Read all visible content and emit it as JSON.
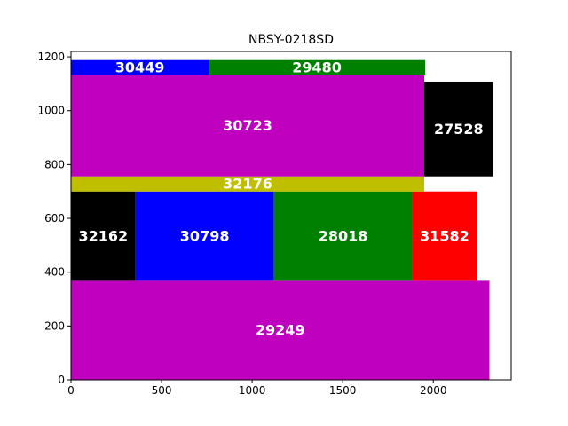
{
  "chart_data": {
    "type": "bar",
    "subtype": "rectangle-packing",
    "title": "NBSY-0218SD",
    "xlabel": "",
    "ylabel": "",
    "xlim": [
      0,
      2430
    ],
    "ylim": [
      0,
      1220
    ],
    "xticks": [
      0,
      500,
      1000,
      1500,
      2000
    ],
    "yticks": [
      0,
      200,
      400,
      600,
      800,
      1000,
      1200
    ],
    "grid": false,
    "rectangles": [
      {
        "label": "29249",
        "x": 0,
        "y": 0,
        "width": 2310,
        "height": 368,
        "color": "#bf00bf"
      },
      {
        "label": "32162",
        "x": 0,
        "y": 368,
        "width": 356,
        "height": 332,
        "color": "#000000"
      },
      {
        "label": "30798",
        "x": 356,
        "y": 368,
        "width": 764,
        "height": 332,
        "color": "#0000ff"
      },
      {
        "label": "28018",
        "x": 1120,
        "y": 368,
        "width": 764,
        "height": 332,
        "color": "#008000"
      },
      {
        "label": "31582",
        "x": 1884,
        "y": 368,
        "width": 356,
        "height": 332,
        "color": "#ff0000"
      },
      {
        "label": "32176",
        "x": 0,
        "y": 700,
        "width": 1950,
        "height": 56,
        "color": "#bfbf00"
      },
      {
        "label": "30723",
        "x": 0,
        "y": 756,
        "width": 1950,
        "height": 376,
        "color": "#bf00bf"
      },
      {
        "label": "27528",
        "x": 1950,
        "y": 756,
        "width": 380,
        "height": 352,
        "color": "#000000"
      },
      {
        "label": "30449",
        "x": 0,
        "y": 1132,
        "width": 760,
        "height": 56,
        "color": "#0000ff"
      },
      {
        "label": "29480",
        "x": 760,
        "y": 1132,
        "width": 1195,
        "height": 56,
        "color": "#008000"
      }
    ]
  }
}
